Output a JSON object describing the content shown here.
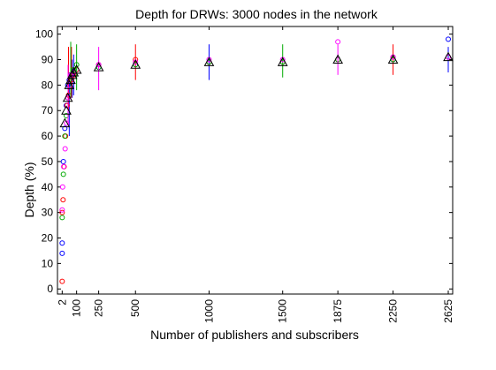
{
  "chart_data": {
    "type": "scatter",
    "title": "Depth for DRWs: 3000 nodes in the network",
    "xlabel": "Number of publishers and subscribers",
    "ylabel": "Depth (%)",
    "xlim": [
      0,
      2625
    ],
    "ylim": [
      -2,
      103
    ],
    "x_tick_labels": [
      "2",
      "100",
      "250",
      "500",
      "1000",
      "1500",
      "1875",
      "2250",
      "2625"
    ],
    "x_tick_values": [
      2,
      100,
      250,
      500,
      1000,
      1500,
      1875,
      2250,
      2625
    ],
    "y_tick_labels": [
      "0",
      "10",
      "20",
      "30",
      "40",
      "50",
      "60",
      "70",
      "80",
      "90",
      "100"
    ],
    "y_tick_values": [
      0,
      10,
      20,
      30,
      40,
      50,
      60,
      70,
      80,
      90,
      100
    ],
    "x_tick_rotation": "vertical",
    "grid": false,
    "legend": "none",
    "series": [
      {
        "color": "#0000ff",
        "marker": "circle",
        "points": [
          [
            2,
            14
          ],
          [
            2,
            18
          ],
          [
            10,
            50
          ],
          [
            20,
            63
          ],
          [
            30,
            72
          ],
          [
            40,
            80
          ],
          [
            50,
            82
          ],
          [
            60,
            84
          ],
          [
            70,
            84
          ],
          [
            80,
            85
          ],
          [
            100,
            86
          ],
          [
            250,
            87
          ],
          [
            500,
            88
          ],
          [
            1000,
            89
          ],
          [
            1500,
            89
          ],
          [
            1875,
            90
          ],
          [
            2250,
            90
          ],
          [
            2625,
            98
          ]
        ],
        "error_bars": [
          [
            50,
            60,
            85
          ],
          [
            70,
            75,
            90
          ],
          [
            80,
            76,
            92
          ],
          [
            1000,
            82,
            96
          ],
          [
            2625,
            85,
            95
          ]
        ]
      },
      {
        "color": "#ff0000",
        "marker": "circle",
        "points": [
          [
            2,
            3
          ],
          [
            2,
            30
          ],
          [
            8,
            35
          ],
          [
            15,
            48
          ],
          [
            25,
            60
          ],
          [
            35,
            72
          ],
          [
            45,
            76
          ],
          [
            55,
            80
          ],
          [
            65,
            82
          ],
          [
            80,
            84
          ],
          [
            100,
            86
          ],
          [
            250,
            88
          ],
          [
            500,
            90
          ],
          [
            1000,
            89
          ],
          [
            1500,
            89
          ],
          [
            1875,
            90
          ],
          [
            2250,
            91
          ],
          [
            2625,
            91
          ]
        ],
        "error_bars": [
          [
            45,
            70,
            95
          ],
          [
            65,
            75,
            95
          ],
          [
            500,
            82,
            96
          ],
          [
            2250,
            84,
            96
          ]
        ]
      },
      {
        "color": "#00aa00",
        "marker": "circle",
        "points": [
          [
            2,
            28
          ],
          [
            10,
            45
          ],
          [
            20,
            60
          ],
          [
            30,
            68
          ],
          [
            40,
            75
          ],
          [
            50,
            80
          ],
          [
            60,
            84
          ],
          [
            80,
            86
          ],
          [
            100,
            88
          ],
          [
            250,
            87
          ],
          [
            500,
            88
          ],
          [
            1000,
            89
          ],
          [
            1500,
            89
          ],
          [
            1875,
            90
          ],
          [
            2250,
            90
          ],
          [
            2625,
            91
          ]
        ],
        "error_bars": [
          [
            60,
            75,
            97
          ],
          [
            100,
            78,
            96
          ],
          [
            1500,
            83,
            96
          ]
        ]
      },
      {
        "color": "#ff00ff",
        "marker": "circle",
        "points": [
          [
            2,
            31
          ],
          [
            5,
            40
          ],
          [
            12,
            48
          ],
          [
            22,
            55
          ],
          [
            32,
            65
          ],
          [
            42,
            75
          ],
          [
            52,
            80
          ],
          [
            62,
            84
          ],
          [
            80,
            85
          ],
          [
            250,
            88
          ],
          [
            500,
            89
          ],
          [
            1000,
            90
          ],
          [
            1500,
            90
          ],
          [
            1875,
            97
          ],
          [
            2250,
            91
          ],
          [
            2625,
            91
          ]
        ],
        "error_bars": [
          [
            42,
            65,
            88
          ],
          [
            250,
            78,
            95
          ],
          [
            1875,
            84,
            96
          ]
        ]
      },
      {
        "color": "#000000",
        "marker": "triangle",
        "points": [
          [
            20,
            65
          ],
          [
            30,
            70
          ],
          [
            40,
            75
          ],
          [
            50,
            80
          ],
          [
            60,
            82
          ],
          [
            70,
            84
          ],
          [
            80,
            85
          ],
          [
            100,
            86
          ],
          [
            250,
            87
          ],
          [
            500,
            88
          ],
          [
            1000,
            89
          ],
          [
            1500,
            89
          ],
          [
            1875,
            90
          ],
          [
            2250,
            90
          ],
          [
            2625,
            91
          ]
        ],
        "error_bars": []
      }
    ]
  }
}
